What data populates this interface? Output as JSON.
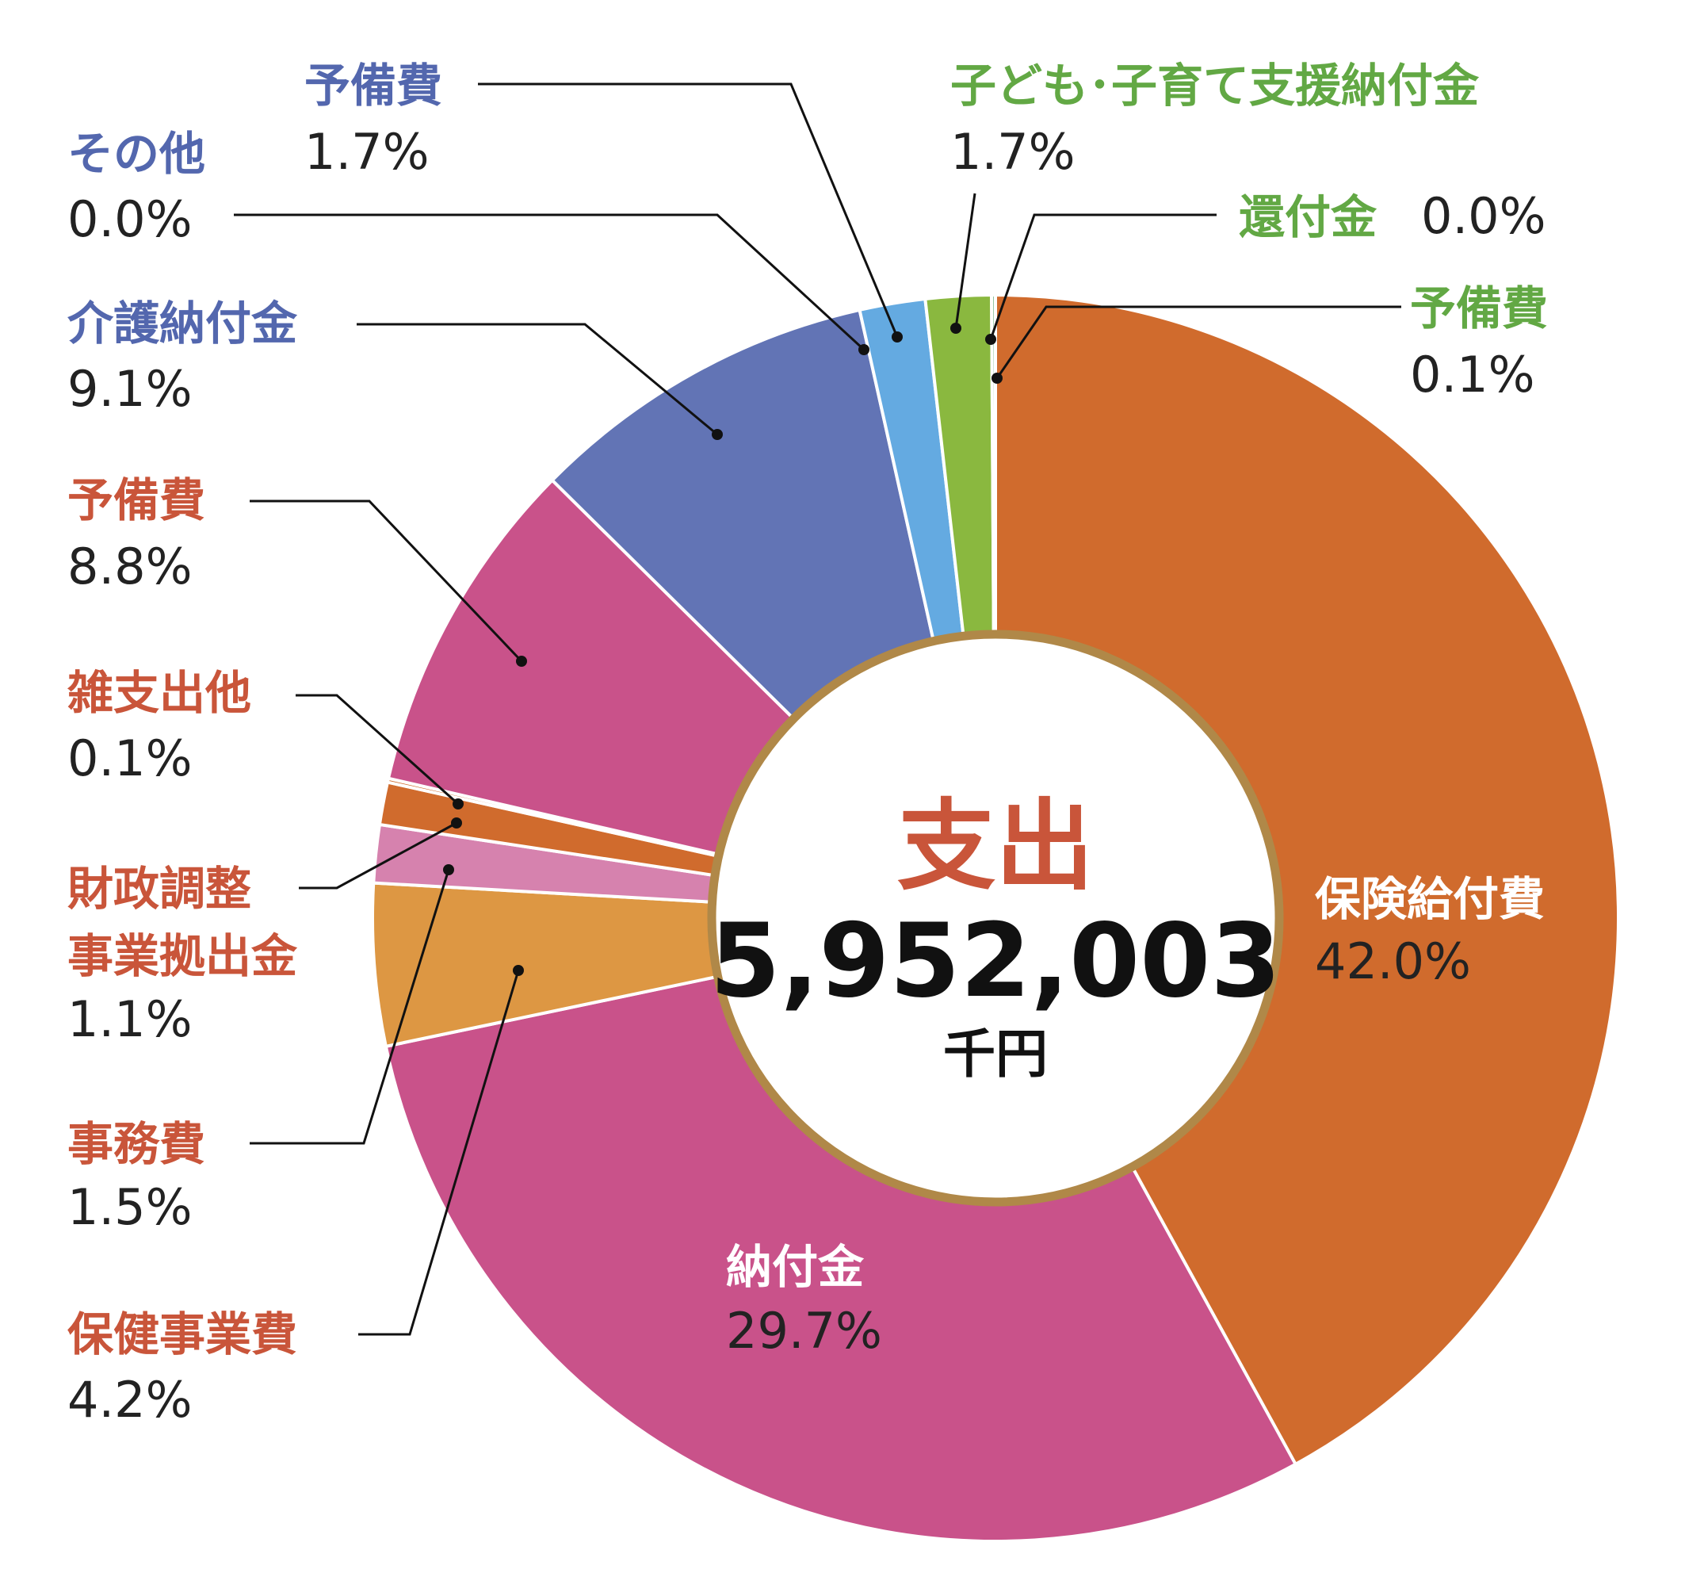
{
  "chart_data": {
    "type": "pie",
    "variant": "donut",
    "title": "支出",
    "total_value": "5,952,003",
    "total_unit": "千円",
    "slices": [
      {
        "label": "保険給付費",
        "value": 42.0,
        "pct": "42.0%",
        "color": "#D06B2D"
      },
      {
        "label": "納付金",
        "value": 29.7,
        "pct": "29.7%",
        "color": "#C9528A"
      },
      {
        "label": "保健事業費",
        "value": 4.2,
        "pct": "4.2%",
        "color": "#DD9743"
      },
      {
        "label": "事務費",
        "value": 1.5,
        "pct": "1.5%",
        "color": "#D682AE"
      },
      {
        "label": "財政調整事業拠出金",
        "label_line1": "財政調整",
        "label_line2": "事業拠出金",
        "value": 1.1,
        "pct": "1.1%",
        "color": "#D06B2D"
      },
      {
        "label": "雑支出他",
        "value": 0.1,
        "pct": "0.1%",
        "color": "#D06B2D"
      },
      {
        "label": "予備費",
        "value": 8.8,
        "pct": "8.8%",
        "color": "#C9528A"
      },
      {
        "label": "介護納付金",
        "value": 9.1,
        "pct": "9.1%",
        "color": "#6274B5"
      },
      {
        "label": "その他",
        "value": 0.0,
        "pct": "0.0%",
        "color": "#6274B5"
      },
      {
        "label": "予備費",
        "value": 1.7,
        "pct": "1.7%",
        "color": "#64AAE1"
      },
      {
        "label": "子ども･子育て支援納付金",
        "value": 1.7,
        "pct": "1.7%",
        "color": "#8AB83F"
      },
      {
        "label": "還付金",
        "value": 0.0,
        "pct": "0.0%",
        "color": "#8AB83F"
      },
      {
        "label": "予備費",
        "value": 0.1,
        "pct": "0.1%",
        "color": "#86BE96"
      }
    ],
    "inner_ring_color": "#B08848",
    "title_color": "#C9553A"
  }
}
